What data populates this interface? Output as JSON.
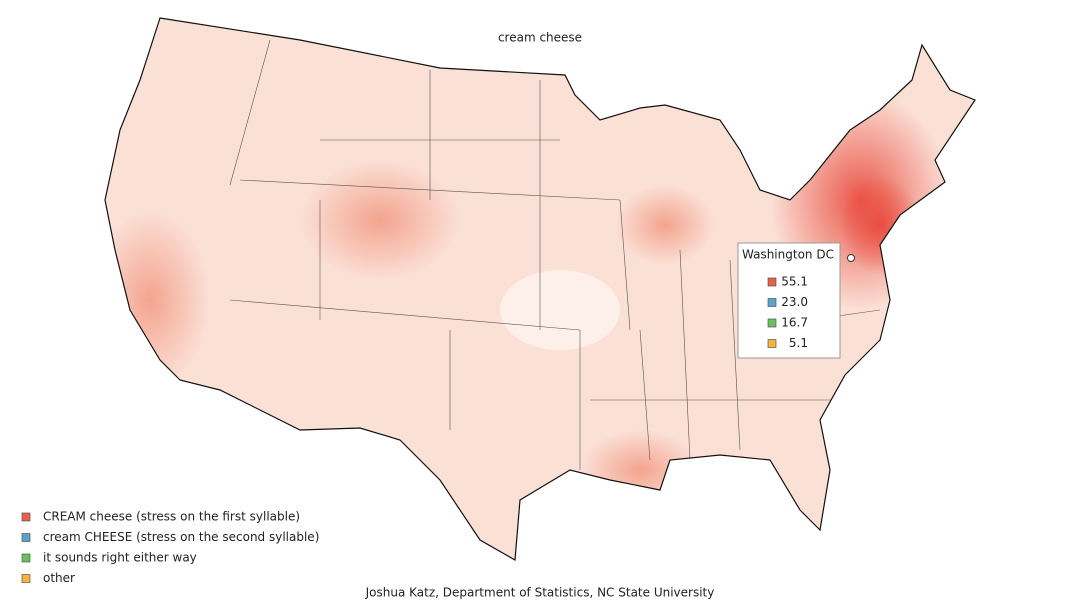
{
  "title": "cream cheese",
  "tooltip": {
    "place": "Washington DC",
    "items": [
      {
        "color": "#e8614a",
        "label": "55.1"
      },
      {
        "color": "#5ba3c9",
        "label": "23.0"
      },
      {
        "color": "#6bbf5f",
        "label": "16.7"
      },
      {
        "color": "#f5b342",
        "label": "5.1"
      }
    ]
  },
  "legend": [
    {
      "color": "#e8614a",
      "label": "CREAM cheese (stress on the first syllable)"
    },
    {
      "color": "#5ba3c9",
      "label": "cream CHEESE (stress on the second syllable)"
    },
    {
      "color": "#6bbf5f",
      "label": "it sounds right either way"
    },
    {
      "color": "#f5b342",
      "label": "other"
    }
  ],
  "credit": "Joshua Katz, Department of Statistics, NC State University"
}
